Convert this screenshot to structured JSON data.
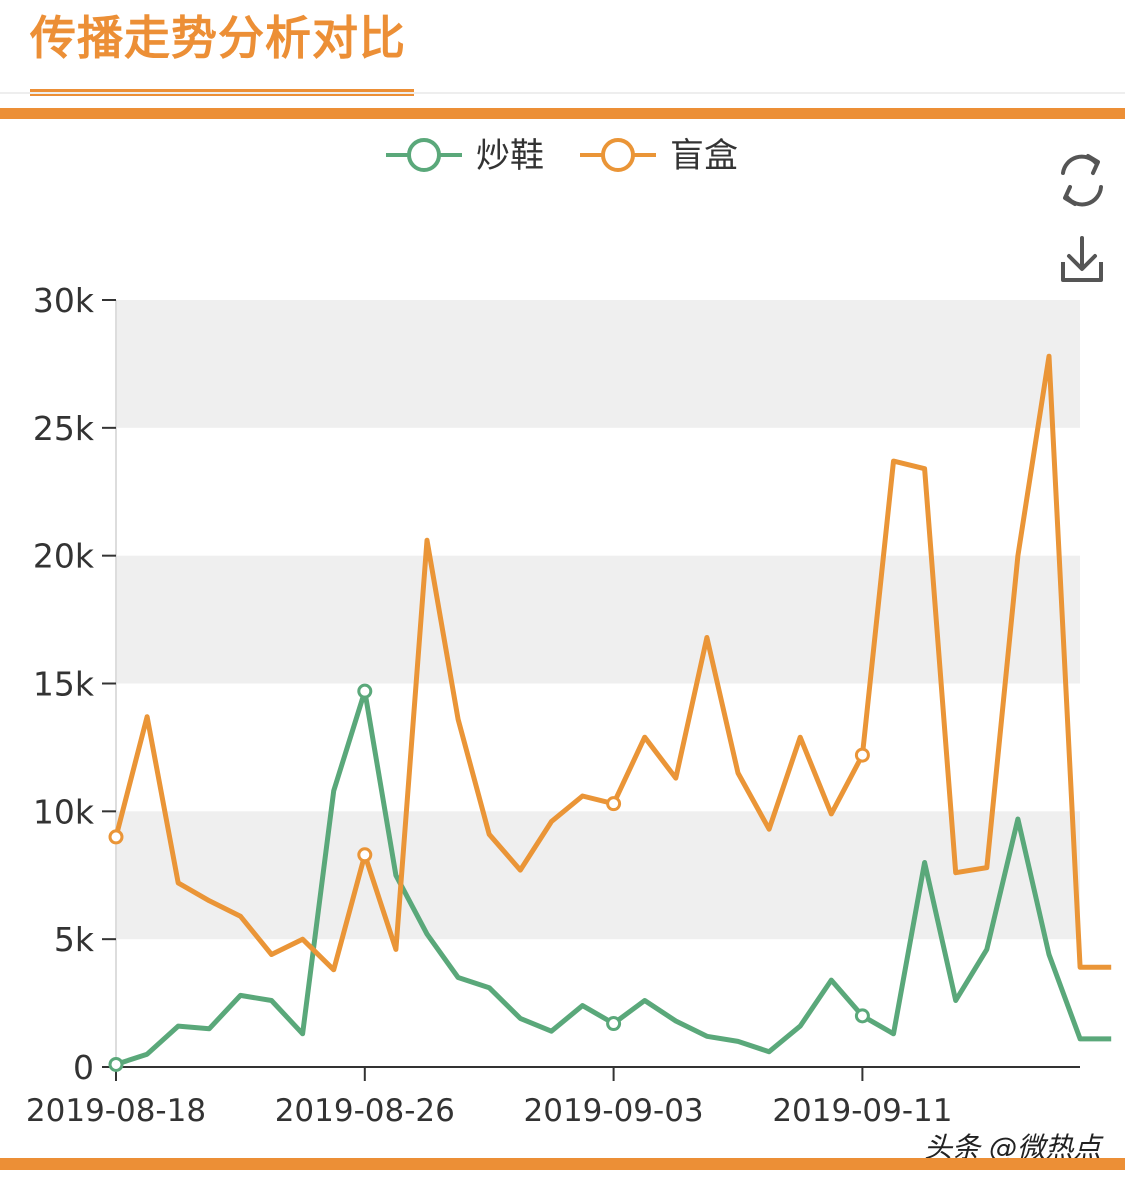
{
  "title": "传播走势分析对比",
  "watermark": "头条 @微热点",
  "colors": {
    "accent": "#ec8f36",
    "series1": "#5aa87a",
    "series2": "#ea9537",
    "band": "#efefef"
  },
  "toolbox": [
    {
      "name": "refresh-icon"
    },
    {
      "name": "download-icon"
    }
  ],
  "chart_data": {
    "type": "line",
    "legend": [
      "炒鞋",
      "盲盒"
    ],
    "legend_position": "top-center",
    "ylim": [
      0,
      30000
    ],
    "y_ticks": [
      0,
      5000,
      10000,
      15000,
      20000,
      25000,
      30000
    ],
    "y_tick_labels": [
      "0",
      "5k",
      "10k",
      "15k",
      "20k",
      "25k",
      "30k"
    ],
    "x_tick_labels": [
      "2019-08-18",
      "2019-08-26",
      "2019-09-03",
      "2019-09-11"
    ],
    "x_tick_indices": [
      0,
      8,
      16,
      24
    ],
    "x": [
      "2019-08-18",
      "2019-08-19",
      "2019-08-20",
      "2019-08-21",
      "2019-08-22",
      "2019-08-23",
      "2019-08-24",
      "2019-08-25",
      "2019-08-26",
      "2019-08-27",
      "2019-08-28",
      "2019-08-29",
      "2019-08-30",
      "2019-08-31",
      "2019-09-01",
      "2019-09-02",
      "2019-09-03",
      "2019-09-04",
      "2019-09-05",
      "2019-09-06",
      "2019-09-07",
      "2019-09-08",
      "2019-09-09",
      "2019-09-10",
      "2019-09-11",
      "2019-09-12",
      "2019-09-13",
      "2019-09-14",
      "2019-09-15",
      "2019-09-16",
      "2019-09-17",
      "2019-09-18",
      "2019-09-19"
    ],
    "grid_bands": "alternating",
    "series": [
      {
        "name": "炒鞋",
        "values": [
          100,
          500,
          1600,
          1500,
          2800,
          2600,
          1300,
          10800,
          14700,
          7500,
          5200,
          3500,
          3100,
          1900,
          1400,
          2400,
          1700,
          2600,
          1800,
          1200,
          1000,
          600,
          1600,
          3400,
          2000,
          1300,
          8000,
          2600,
          4600,
          9700,
          4400,
          1100,
          1100
        ]
      },
      {
        "name": "盲盒",
        "values": [
          9000,
          13700,
          7200,
          6500,
          5900,
          4400,
          5000,
          3800,
          8300,
          4600,
          20600,
          13600,
          9100,
          7700,
          9600,
          10600,
          10300,
          12900,
          11300,
          16800,
          11500,
          9300,
          12900,
          9900,
          12200,
          23700,
          23400,
          7600,
          7800,
          20000,
          27800,
          3900,
          3900
        ]
      }
    ],
    "markers": [
      0,
      8,
      16,
      24
    ]
  }
}
